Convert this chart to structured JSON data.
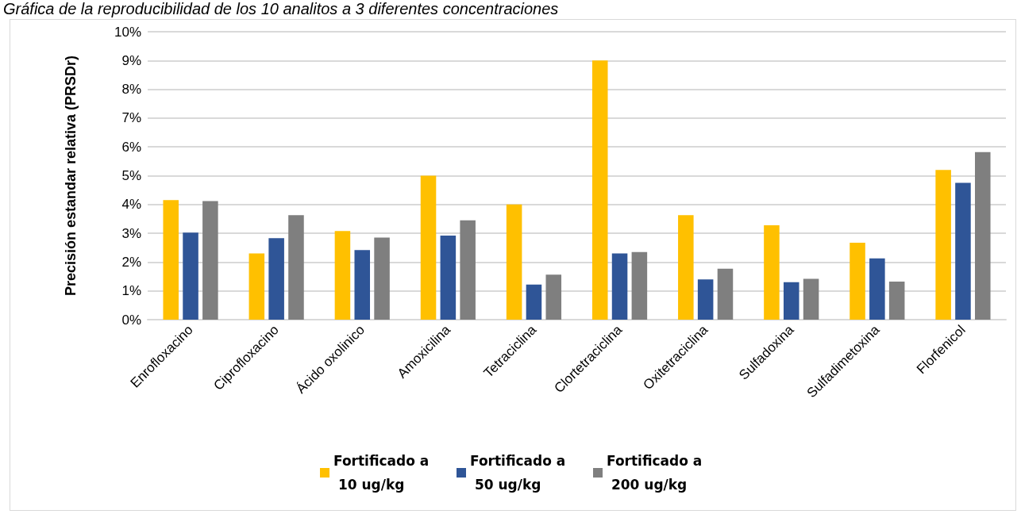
{
  "chart_data": {
    "type": "bar",
    "title": "Gráfica de la reproducibilidad de los 10 analitos a 3 diferentes concentraciones",
    "ylabel": "Precisión estandar relativa (PRSDr)",
    "categories": [
      "Enrofloxacino",
      "Ciprofloxacino",
      "Ácido oxolinico",
      "Amoxicilina",
      "Tetraciclina",
      "Clortetraciclina",
      "Oxitetraciclina",
      "Sulfadoxina",
      "Sulfadimetoxina",
      "Florfenicol"
    ],
    "series": [
      {
        "name": "Fortificado a 10 ug/kg",
        "color": "#ffc000",
        "values": [
          4.15,
          2.3,
          3.08,
          5.0,
          4.0,
          9.0,
          3.63,
          3.28,
          2.67,
          5.2
        ]
      },
      {
        "name": "Fortificado a 50 ug/kg",
        "color": "#2f5597",
        "values": [
          3.02,
          2.83,
          2.42,
          2.92,
          1.22,
          2.3,
          1.4,
          1.3,
          2.13,
          4.75
        ]
      },
      {
        "name": "Fortificado a 200 ug/kg",
        "color": "#7f7f7f",
        "values": [
          4.12,
          3.63,
          2.85,
          3.45,
          1.56,
          2.35,
          1.77,
          1.42,
          1.32,
          5.82
        ]
      }
    ],
    "ylim": [
      0,
      10
    ],
    "yticks": [
      {
        "value": 0,
        "label": "0%"
      },
      {
        "value": 1,
        "label": "1%"
      },
      {
        "value": 2,
        "label": "2%"
      },
      {
        "value": 3,
        "label": "3%"
      },
      {
        "value": 4,
        "label": "4%"
      },
      {
        "value": 5,
        "label": "5%"
      },
      {
        "value": 6,
        "label": "6%"
      },
      {
        "value": 7,
        "label": "7%"
      },
      {
        "value": 8,
        "label": "8%"
      },
      {
        "value": 9,
        "label": "9%"
      },
      {
        "value": 10,
        "label": "10%"
      }
    ],
    "grid": "y",
    "legend": "bottom"
  }
}
